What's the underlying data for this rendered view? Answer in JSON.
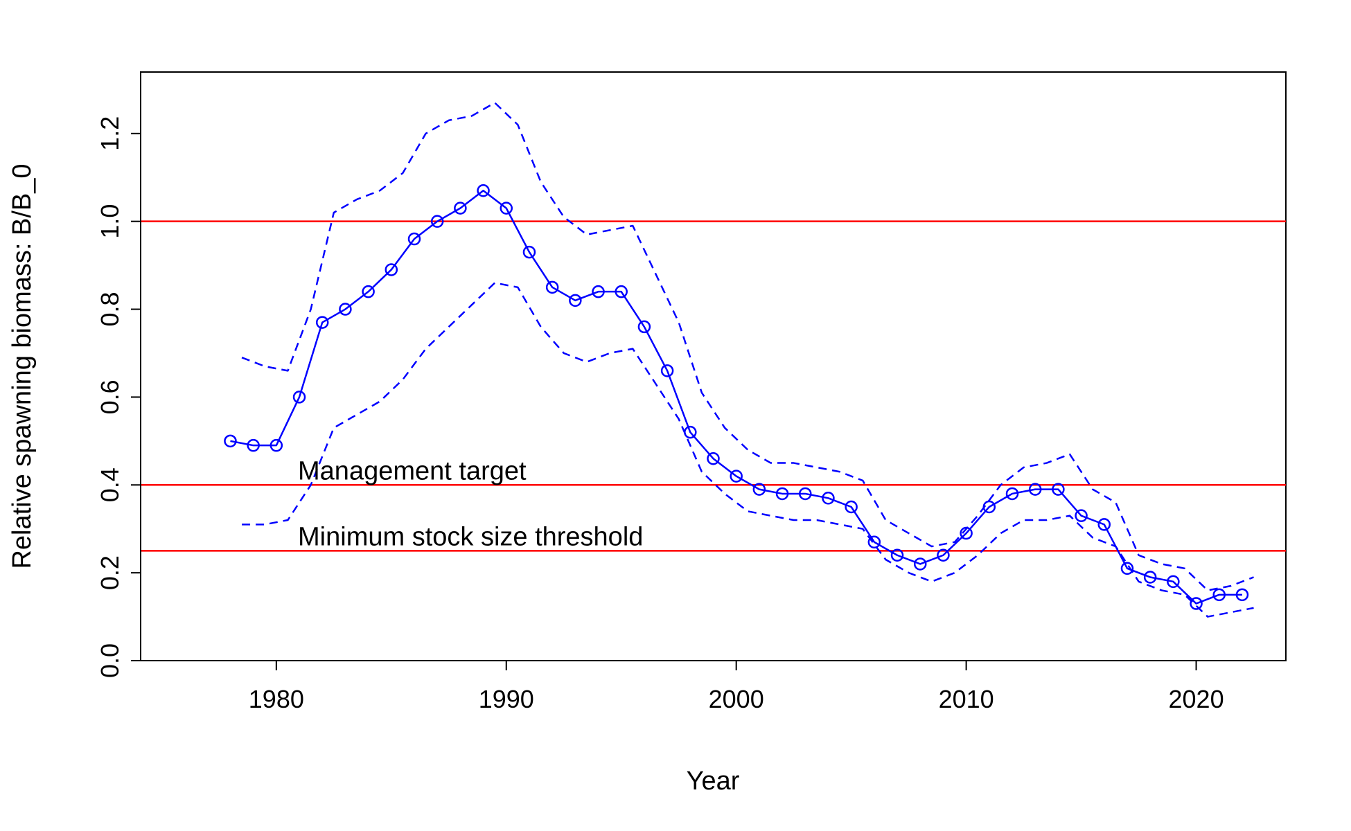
{
  "chart_data": {
    "type": "line",
    "title": "",
    "xlabel": "Year",
    "ylabel": "Relative spawning biomass: B/B_0",
    "xlim": [
      1974.1,
      2023.9
    ],
    "ylim": [
      0.0,
      1.34
    ],
    "x_ticks": [
      1980,
      1990,
      2000,
      2010,
      2020
    ],
    "x_tick_labels": [
      "1980",
      "1990",
      "2000",
      "2010",
      "2020"
    ],
    "y_ticks": [
      0.0,
      0.2,
      0.4,
      0.6,
      0.8,
      1.0,
      1.2
    ],
    "y_tick_labels": [
      "0.0",
      "0.2",
      "0.4",
      "0.6",
      "0.8",
      "1.0",
      "1.2"
    ],
    "grid": false,
    "legend": "none",
    "series": [
      {
        "style": "solid line with open circles",
        "color": "#0000FF",
        "x": [
          1978,
          1979,
          1980,
          1981,
          1982,
          1983,
          1984,
          1985,
          1986,
          1987,
          1988,
          1989,
          1990,
          1991,
          1992,
          1993,
          1994,
          1995,
          1996,
          1997,
          1998,
          1999,
          2000,
          2001,
          2002,
          2003,
          2004,
          2005,
          2006,
          2007,
          2008,
          2009,
          2010,
          2011,
          2012,
          2013,
          2014,
          2015,
          2016,
          2017,
          2018,
          2019,
          2020,
          2021,
          2022
        ],
        "y": [
          0.5,
          0.49,
          0.49,
          0.6,
          0.77,
          0.8,
          0.84,
          0.89,
          0.96,
          1.0,
          1.03,
          1.07,
          1.03,
          0.93,
          0.85,
          0.82,
          0.84,
          0.84,
          0.76,
          0.66,
          0.52,
          0.46,
          0.42,
          0.39,
          0.38,
          0.38,
          0.37,
          0.35,
          0.27,
          0.24,
          0.22,
          0.24,
          0.29,
          0.35,
          0.38,
          0.39,
          0.39,
          0.33,
          0.31,
          0.21,
          0.19,
          0.18,
          0.13,
          0.15,
          0.15
        ]
      },
      {
        "style": "dashed line",
        "color": "#0000FF",
        "x": [
          1978.5,
          1979.5,
          1980.5,
          1981.5,
          1982.5,
          1983.5,
          1984.5,
          1985.5,
          1986.5,
          1987.5,
          1988.5,
          1989.5,
          1990.5,
          1991.5,
          1992.5,
          1993.5,
          1994.5,
          1995.5,
          1996.5,
          1997.5,
          1998.5,
          1999.5,
          2000.5,
          2001.5,
          2002.5,
          2003.5,
          2004.5,
          2005.5,
          2006.5,
          2007.5,
          2008.5,
          2009.5,
          2010.5,
          2011.5,
          2012.5,
          2013.5,
          2014.5,
          2015.5,
          2016.5,
          2017.5,
          2018.5,
          2019.5,
          2020.5,
          2021.5,
          2022.5
        ],
        "y": [
          0.69,
          0.67,
          0.66,
          0.8,
          1.02,
          1.05,
          1.07,
          1.11,
          1.2,
          1.23,
          1.24,
          1.27,
          1.22,
          1.09,
          1.01,
          0.97,
          0.98,
          0.99,
          0.88,
          0.77,
          0.61,
          0.53,
          0.48,
          0.45,
          0.45,
          0.44,
          0.43,
          0.41,
          0.32,
          0.29,
          0.26,
          0.27,
          0.33,
          0.4,
          0.44,
          0.45,
          0.47,
          0.39,
          0.36,
          0.24,
          0.22,
          0.21,
          0.16,
          0.17,
          0.19
        ]
      },
      {
        "style": "dashed line",
        "color": "#0000FF",
        "x": [
          1978.5,
          1979.5,
          1980.5,
          1981.5,
          1982.5,
          1983.5,
          1984.5,
          1985.5,
          1986.5,
          1987.5,
          1988.5,
          1989.5,
          1990.5,
          1991.5,
          1992.5,
          1993.5,
          1994.5,
          1995.5,
          1996.5,
          1997.5,
          1998.5,
          1999.5,
          2000.5,
          2001.5,
          2002.5,
          2003.5,
          2004.5,
          2005.5,
          2006.5,
          2007.5,
          2008.5,
          2009.5,
          2010.5,
          2011.5,
          2012.5,
          2013.5,
          2014.5,
          2015.5,
          2016.5,
          2017.5,
          2018.5,
          2019.5,
          2020.5,
          2021.5,
          2022.5
        ],
        "y": [
          0.31,
          0.31,
          0.32,
          0.4,
          0.53,
          0.56,
          0.59,
          0.64,
          0.71,
          0.76,
          0.81,
          0.86,
          0.85,
          0.76,
          0.7,
          0.68,
          0.7,
          0.71,
          0.63,
          0.55,
          0.43,
          0.38,
          0.34,
          0.33,
          0.32,
          0.32,
          0.31,
          0.3,
          0.23,
          0.2,
          0.18,
          0.2,
          0.24,
          0.29,
          0.32,
          0.32,
          0.33,
          0.28,
          0.26,
          0.18,
          0.16,
          0.15,
          0.1,
          0.11,
          0.12
        ]
      }
    ],
    "reference_lines": [
      {
        "y": 1.0,
        "color": "#FF0000",
        "label": ""
      },
      {
        "y": 0.4,
        "color": "#FF0000",
        "label": "Management target"
      },
      {
        "y": 0.25,
        "color": "#FF0000",
        "label": "Minimum stock size threshold"
      }
    ],
    "annotation_x": 1981
  }
}
